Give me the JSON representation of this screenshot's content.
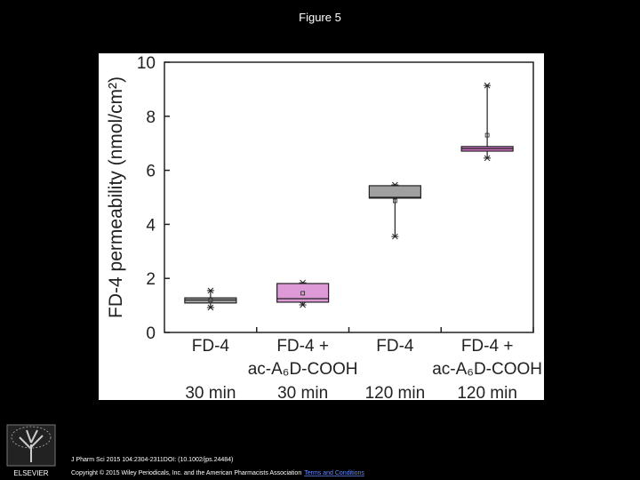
{
  "page_title": "Figure 5",
  "chart_data": {
    "type": "box",
    "y_label": "FD-4 permeability (nmol/cm²)",
    "categories": [
      [
        "FD-4",
        "30 min"
      ],
      [
        "FD-4 +",
        "ac-A₆D-COOH",
        "30 min"
      ],
      [
        "FD-4",
        "120 min"
      ],
      [
        "FD-4 +",
        "ac-A₆D-COOH",
        "120 min"
      ]
    ],
    "boxes": [
      {
        "min": 0.92,
        "q1": 1.09,
        "median": 1.2,
        "q3": 1.28,
        "max": 1.55,
        "mean": 1.2
      },
      {
        "min": 1.02,
        "q1": 1.12,
        "median": 1.25,
        "q3": 1.81,
        "max": 1.84,
        "mean": 1.45
      },
      {
        "min": 3.55,
        "q1": 4.97,
        "median": 5.0,
        "q3": 5.43,
        "max": 5.46,
        "mean": 4.87
      },
      {
        "min": 6.45,
        "q1": 6.71,
        "median": 6.8,
        "q3": 6.88,
        "max": 9.14,
        "mean": 7.3
      }
    ],
    "colors": [
      "#a0a0a0",
      "#dd9ad6",
      "#a0a0a0",
      "#d472c8"
    ],
    "ylim": [
      0,
      10
    ],
    "yticks": [
      0,
      2,
      4,
      6,
      8,
      10
    ]
  },
  "footer": {
    "logo_text": "ELSEVIER",
    "citation": "J Pharm Sci 2015 104:2304-2311DOI: (10.1002/jps.24484)",
    "copyright": "Copyright © 2015 Wiley Periodicals, Inc. and the American Pharmacists Association",
    "link": "Terms and Conditions"
  }
}
